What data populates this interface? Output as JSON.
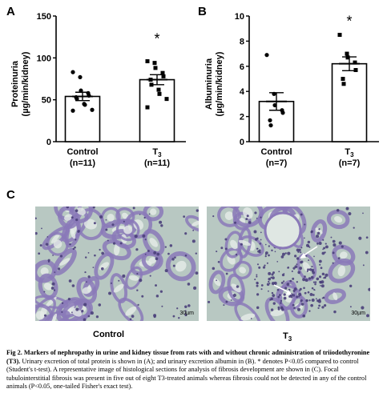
{
  "panels": {
    "a": "A",
    "b": "B",
    "c": "C"
  },
  "chart_data": [
    {
      "type": "bar",
      "panel": "A",
      "ylabel_line1": "Proteinuria",
      "ylabel_line2": "(µg/min/kidney)",
      "ylim": [
        0,
        150
      ],
      "yticks": [
        "0",
        "50",
        "100",
        "150"
      ],
      "categories": [
        "Control",
        "T3"
      ],
      "category_n": [
        "(n=11)",
        "(n=11)"
      ],
      "means": [
        54,
        74
      ],
      "sem": [
        5,
        6
      ],
      "points": [
        [
          83,
          77,
          61,
          58,
          55,
          53,
          51,
          45,
          44,
          38,
          37
        ],
        [
          96,
          94,
          88,
          82,
          78,
          74,
          68,
          62,
          57,
          51,
          41
        ]
      ],
      "significance": [
        "",
        "*"
      ]
    },
    {
      "type": "bar",
      "panel": "B",
      "ylabel_line1": "Albuminuria",
      "ylabel_line2": "(µg/min/kidney)",
      "ylim": [
        0,
        10
      ],
      "yticks": [
        "0",
        "2",
        "4",
        "6",
        "8",
        "10"
      ],
      "categories": [
        "Control",
        "T3"
      ],
      "category_n": [
        "(n=7)",
        "(n=7)"
      ],
      "means": [
        3.2,
        6.2
      ],
      "sem": [
        0.7,
        0.55
      ],
      "points": [
        [
          6.9,
          3.8,
          2.9,
          2.5,
          2.3,
          1.7,
          1.3
        ],
        [
          8.5,
          7.0,
          6.7,
          6.3,
          5.7,
          5.0,
          4.6
        ]
      ],
      "significance": [
        "",
        "*"
      ]
    }
  ],
  "micrographs": {
    "left_label": "Control",
    "right_label": "T3",
    "left_scale": "30µm",
    "right_scale": "30µm"
  },
  "caption": {
    "lead": "Fig 2. Markers of nephropathy in urine and kidney tissue from rats with and without chronic administration of triiodothyronine (T3).",
    "body": "Urinary excretion of total protein is shown in (A); and urinary excretion albumin in (B). * denotes P<0.05 compared to control (Student's t-test). A representative image of histological sections for analysis of fibrosis development are shown in (C). Focal tubulointerstitial fibrosis was present in five out of eight T3-treated animals whereas fibrosis could not be detected in any of the control animals (P<0.05, one-tailed Fisher's exact test)."
  },
  "colors": {
    "tissue_background": "#b8c8c2",
    "tissue_stain": "#8a79b8",
    "nuclei": "#4a3f7a"
  }
}
